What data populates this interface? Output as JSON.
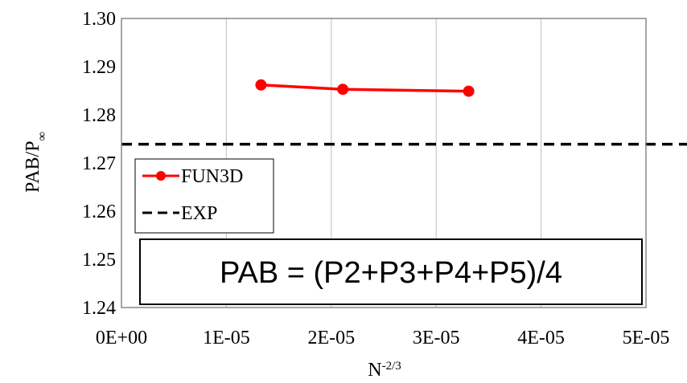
{
  "chart_data": {
    "type": "line",
    "xlabel": {
      "base": "N",
      "sup": "-2/3"
    },
    "ylabel": {
      "base": "PAB/P",
      "sub": "∞"
    },
    "xlim": [
      0,
      5e-05
    ],
    "ylim": [
      1.24,
      1.3
    ],
    "x_ticks": [
      0,
      1e-05,
      2e-05,
      3e-05,
      4e-05,
      5e-05
    ],
    "x_tick_labels": [
      "0E+00",
      "1E-05",
      "2E-05",
      "3E-05",
      "4E-05",
      "5E-05"
    ],
    "y_ticks": [
      1.24,
      1.25,
      1.26,
      1.27,
      1.28,
      1.29,
      1.3
    ],
    "y_tick_labels": [
      "1.24",
      "1.25",
      "1.26",
      "1.27",
      "1.28",
      "1.29",
      "1.30"
    ],
    "grid": "vertical",
    "legend_position": "left",
    "series": [
      {
        "name": "FUN3D",
        "style": "solid-line-circle-markers",
        "color": "#ff0000",
        "x": [
          1.33e-05,
          2.11e-05,
          3.31e-05
        ],
        "y": [
          1.2862,
          1.2853,
          1.2849
        ]
      },
      {
        "name": "EXP",
        "style": "dashed-line",
        "color": "#000000",
        "y_constant": 1.2739
      }
    ],
    "annotation": "PAB = (P2+P3+P4+P5)/4"
  }
}
